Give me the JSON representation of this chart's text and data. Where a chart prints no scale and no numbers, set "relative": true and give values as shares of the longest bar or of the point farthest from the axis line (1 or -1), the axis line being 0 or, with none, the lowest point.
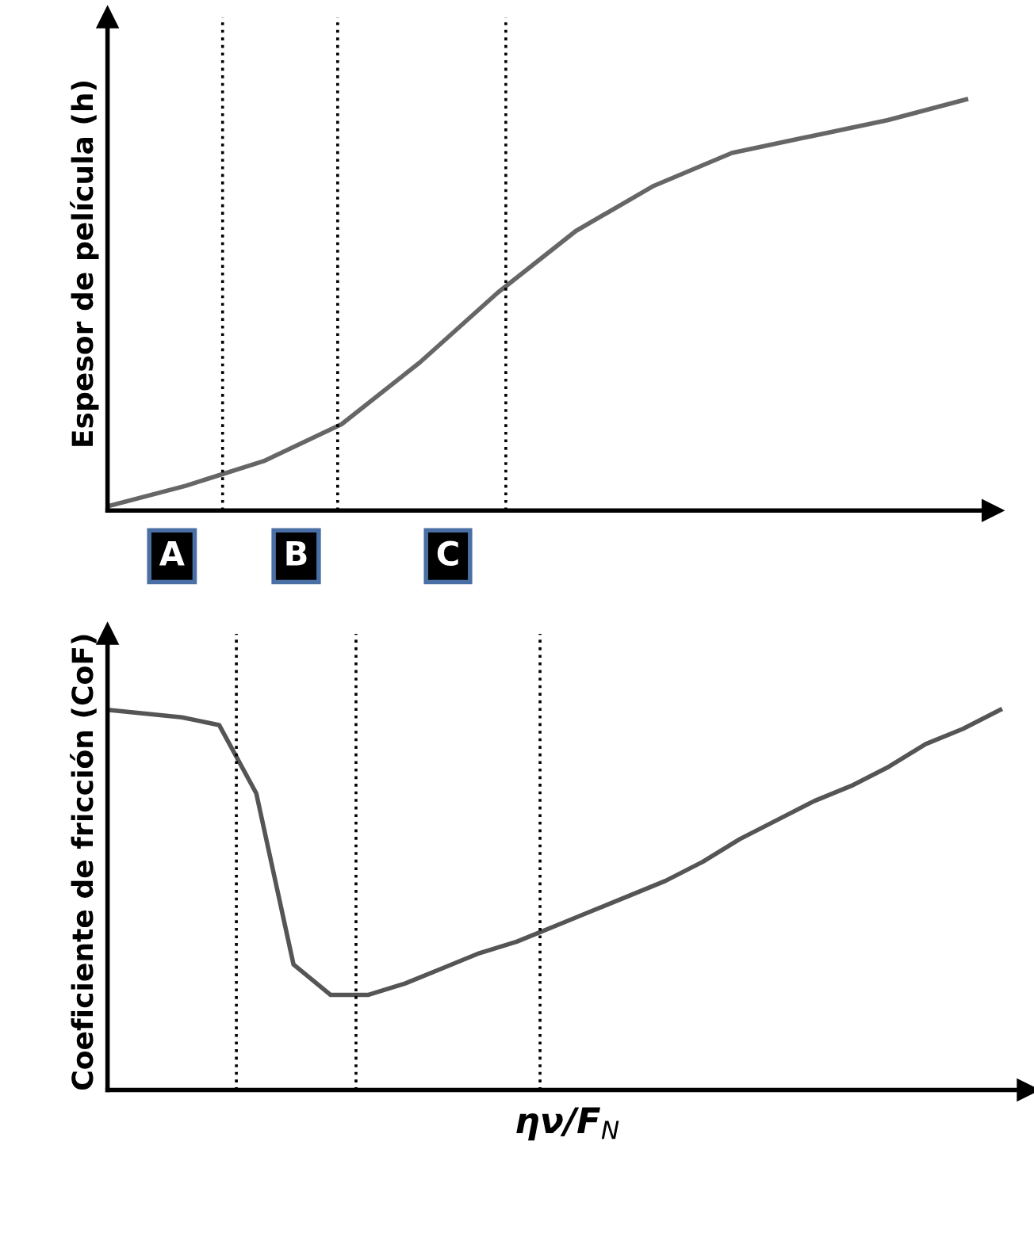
{
  "chart_data": [
    {
      "type": "line",
      "relative": true,
      "ylabel": "Espesor de película (h)",
      "color": "#666666",
      "categories": [
        null,
        null,
        null,
        null,
        null,
        null,
        null,
        null,
        null,
        null,
        null,
        null
      ],
      "values": [
        0.01,
        0.06,
        0.12,
        0.21,
        0.36,
        0.53,
        0.68,
        0.79,
        0.87,
        0.91,
        0.95,
        1
      ]
    },
    {
      "type": "line",
      "relative": true,
      "ylabel": "Coeficiente de fricción (CoF)",
      "xlabel": "ην/F$_{N}$",
      "color": "#555555",
      "categories": [
        null,
        null,
        null,
        null,
        null,
        null,
        null,
        null,
        null,
        null,
        null,
        null,
        null,
        null,
        null,
        null,
        null,
        null,
        null,
        null,
        null,
        null,
        null,
        null,
        null
      ],
      "values": [
        1,
        0.99,
        0.98,
        0.96,
        0.78,
        0.33,
        0.25,
        0.25,
        0.28,
        0.32,
        0.36,
        0.39,
        0.43,
        0.47,
        0.51,
        0.55,
        0.6,
        0.66,
        0.71,
        0.76,
        0.8,
        0.85,
        0.91,
        0.95,
        1
      ],
      "annotations": [
        "A",
        "B",
        "C"
      ]
    }
  ]
}
